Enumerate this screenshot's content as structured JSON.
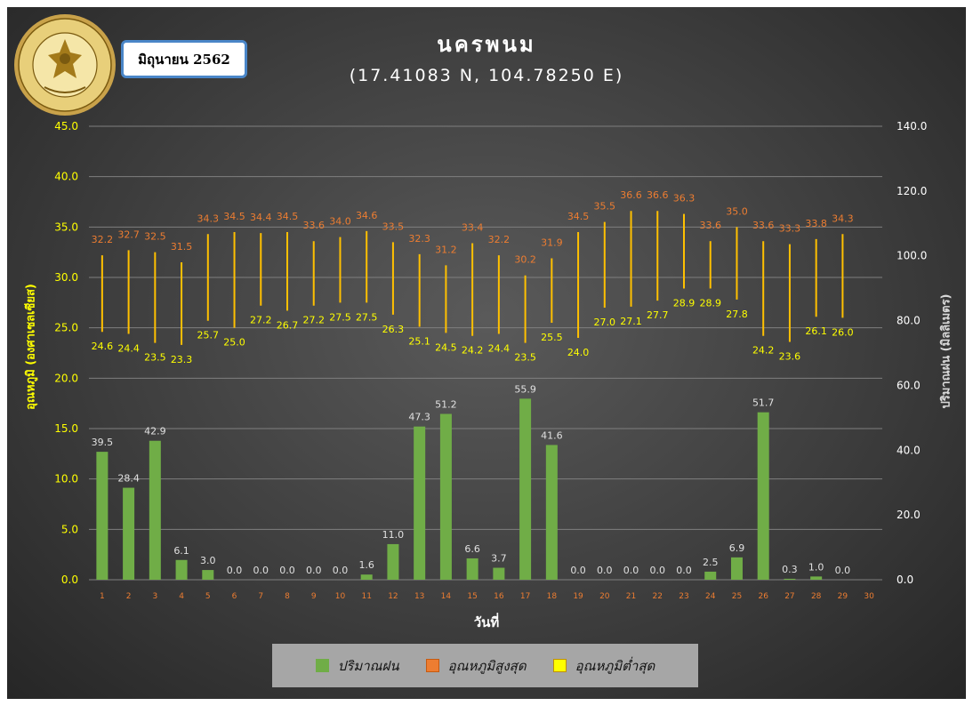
{
  "header": {
    "title": "นครพนม",
    "coordinates": "(17.41083 N, 104.78250 E)",
    "period": "มิถุนายน 2562",
    "logo_text": "กรมอุตุนิยมวิทยา METEOROLOGICAL DEPARTMENT"
  },
  "legend": {
    "rain": "ปริมาณฝน",
    "max": "อุณหภูมิสูงสุด",
    "min": "อุณหภูมิต่ำสุด"
  },
  "colors": {
    "rain": "#70ad47",
    "max_label": "#ed7d31",
    "min_label": "#ffff00",
    "range_line": "#ffc000",
    "left_axis": "#ffff00",
    "right_axis": "#ffffff",
    "grid": "#7f7f7f",
    "tick_x": "#ed7d31"
  },
  "chart_data": {
    "type": "bar",
    "xlabel": "วันที่",
    "ylabel_left": "อุณหภูมิ (องศาเซลเซียส)",
    "ylabel_right": "ปริมาณฝน (มิลลิเมตร)",
    "ylim_left": [
      0,
      45
    ],
    "ylim_right": [
      0,
      140
    ],
    "yticks_left": [
      "0.0",
      "5.0",
      "10.0",
      "15.0",
      "20.0",
      "25.0",
      "30.0",
      "35.0",
      "40.0",
      "45.0"
    ],
    "yticks_right": [
      "0.0",
      "20.0",
      "40.0",
      "60.0",
      "80.0",
      "100.0",
      "120.0",
      "140.0"
    ],
    "grid": true,
    "legend_position": "bottom",
    "categories": [
      "1",
      "2",
      "3",
      "4",
      "5",
      "6",
      "7",
      "8",
      "9",
      "10",
      "11",
      "12",
      "13",
      "14",
      "15",
      "16",
      "17",
      "18",
      "19",
      "20",
      "21",
      "22",
      "23",
      "24",
      "25",
      "26",
      "27",
      "28",
      "29",
      "30"
    ],
    "series": [
      {
        "name": "ปริมาณฝน",
        "axis": "right",
        "values": [
          39.5,
          28.4,
          42.9,
          6.1,
          3.0,
          0.0,
          0.0,
          0.0,
          0.0,
          0.0,
          1.6,
          11.0,
          47.3,
          51.2,
          6.6,
          3.7,
          55.9,
          41.6,
          0.0,
          0.0,
          0.0,
          0.0,
          0.0,
          2.5,
          6.9,
          51.7,
          0.3,
          1.0,
          0.0,
          null
        ]
      },
      {
        "name": "อุณหภูมิสูงสุด",
        "axis": "left",
        "values": [
          32.2,
          32.7,
          32.5,
          31.5,
          34.3,
          34.5,
          34.4,
          34.5,
          33.6,
          34.0,
          34.6,
          33.5,
          32.3,
          31.2,
          33.4,
          32.2,
          30.2,
          31.9,
          34.5,
          35.5,
          36.6,
          36.6,
          36.3,
          33.6,
          35.0,
          33.6,
          33.3,
          33.8,
          34.3,
          null
        ]
      },
      {
        "name": "อุณหภูมิต่ำสุด",
        "axis": "left",
        "values": [
          24.6,
          24.4,
          23.5,
          23.3,
          25.7,
          25.0,
          27.2,
          26.7,
          27.2,
          27.5,
          27.5,
          26.3,
          25.1,
          24.5,
          24.2,
          24.4,
          23.5,
          25.5,
          24.0,
          27.0,
          27.1,
          27.7,
          28.9,
          28.9,
          27.8,
          24.2,
          23.6,
          26.1,
          26.0,
          null
        ]
      }
    ]
  }
}
